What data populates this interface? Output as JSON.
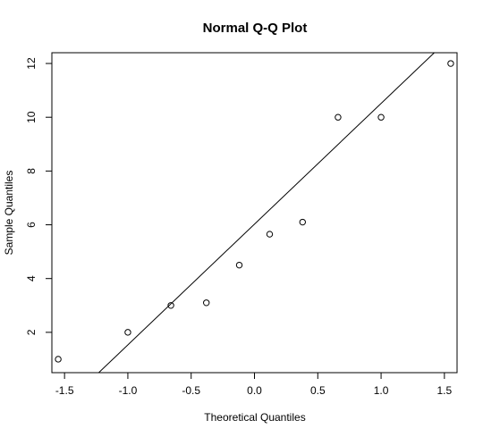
{
  "chart_data": {
    "type": "scatter",
    "title": "Normal Q-Q Plot",
    "xlabel": "Theoretical Quantiles",
    "ylabel": "Sample Quantiles",
    "xlim": [
      -1.6,
      1.6
    ],
    "ylim": [
      0.5,
      12.4
    ],
    "x_ticks": [
      -1.5,
      -1.0,
      -0.5,
      0.0,
      0.5,
      1.0,
      1.5
    ],
    "x_tick_labels": [
      "-1.5",
      "-1.0",
      "-0.5",
      "0.0",
      "0.5",
      "1.0",
      "1.5"
    ],
    "y_ticks": [
      2,
      4,
      6,
      8,
      10,
      12
    ],
    "y_tick_labels": [
      "2",
      "4",
      "6",
      "8",
      "10",
      "12"
    ],
    "points": [
      {
        "x": -1.55,
        "y": 1.0
      },
      {
        "x": -1.0,
        "y": 2.0
      },
      {
        "x": -0.66,
        "y": 3.0
      },
      {
        "x": -0.38,
        "y": 3.1
      },
      {
        "x": -0.12,
        "y": 4.5
      },
      {
        "x": 0.12,
        "y": 5.65
      },
      {
        "x": 0.38,
        "y": 6.1
      },
      {
        "x": 0.66,
        "y": 10.0
      },
      {
        "x": 1.0,
        "y": 10.0
      },
      {
        "x": 1.55,
        "y": 12.0
      }
    ],
    "reference_line": {
      "x1": -1.23,
      "y1": 0.5,
      "x2": 1.42,
      "y2": 12.4
    },
    "grid": false,
    "legend": "none"
  }
}
